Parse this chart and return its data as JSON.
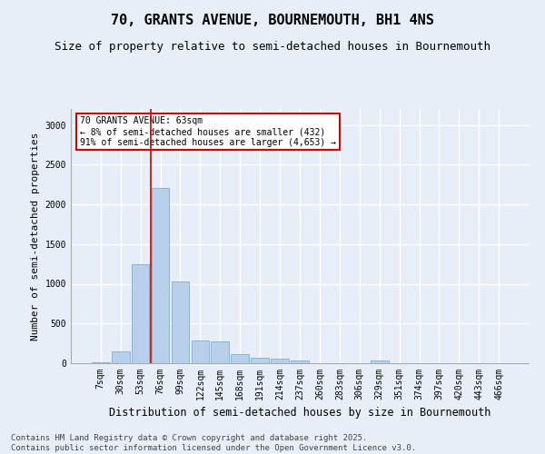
{
  "title": "70, GRANTS AVENUE, BOURNEMOUTH, BH1 4NS",
  "subtitle": "Size of property relative to semi-detached houses in Bournemouth",
  "xlabel": "Distribution of semi-detached houses by size in Bournemouth",
  "ylabel": "Number of semi-detached properties",
  "categories": [
    "7sqm",
    "30sqm",
    "53sqm",
    "76sqm",
    "99sqm",
    "122sqm",
    "145sqm",
    "168sqm",
    "191sqm",
    "214sqm",
    "237sqm",
    "260sqm",
    "283sqm",
    "306sqm",
    "329sqm",
    "351sqm",
    "374sqm",
    "397sqm",
    "420sqm",
    "443sqm",
    "466sqm"
  ],
  "values": [
    10,
    150,
    1250,
    2200,
    1030,
    290,
    270,
    110,
    70,
    60,
    40,
    0,
    0,
    0,
    30,
    0,
    0,
    0,
    0,
    0,
    0
  ],
  "bar_color": "#b8d0eb",
  "bar_edge_color": "#7aafd4",
  "vline_pos": 2.5,
  "vline_color": "#cc0000",
  "annotation_text": "70 GRANTS AVENUE: 63sqm\n← 8% of semi-detached houses are smaller (432)\n91% of semi-detached houses are larger (4,653) →",
  "annotation_box_color": "#ffffff",
  "annotation_box_edge": "#cc0000",
  "ylim": [
    0,
    3200
  ],
  "yticks": [
    0,
    500,
    1000,
    1500,
    2000,
    2500,
    3000
  ],
  "footer_line1": "Contains HM Land Registry data © Crown copyright and database right 2025.",
  "footer_line2": "Contains public sector information licensed under the Open Government Licence v3.0.",
  "bg_color": "#e8eef8",
  "plot_bg_color": "#e8eef8",
  "grid_color": "#ffffff",
  "title_fontsize": 11,
  "subtitle_fontsize": 9,
  "tick_fontsize": 7,
  "ylabel_fontsize": 8,
  "xlabel_fontsize": 8.5,
  "footer_fontsize": 6.5
}
